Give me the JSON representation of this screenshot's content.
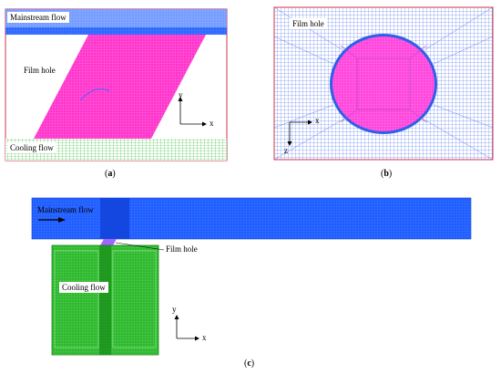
{
  "panel_a": {
    "labels": {
      "mainstream": "Mainstream flow",
      "film_hole": "Film hole",
      "cooling": "Cooling flow"
    },
    "axes": {
      "y": "y",
      "x": "x"
    },
    "caption": {
      "open": "(",
      "letter": "a",
      "close": ")"
    },
    "colors": {
      "mainstream": "#1a5cff",
      "film_hole": "#ff33cc",
      "cooling": "#33cc33",
      "frame": "#d0344a"
    }
  },
  "panel_b": {
    "labels": {
      "film_hole": "Film hole"
    },
    "axes": {
      "x": "x",
      "z": "z"
    },
    "caption": {
      "open": "(",
      "letter": "b",
      "close": ")"
    },
    "colors": {
      "mesh": "#2f5fe8",
      "hole": "#ff44dd",
      "frame": "#d0344a"
    }
  },
  "panel_c": {
    "labels": {
      "mainstream": "Mainstream flow",
      "film_hole": "Film hole",
      "cooling": "Cooling flow"
    },
    "axes": {
      "y": "y",
      "x": "x"
    },
    "caption": {
      "open": "(",
      "letter": "c",
      "close": ")"
    },
    "colors": {
      "mainstream": "#1a5cff",
      "cooling": "#2db82d",
      "hole": "#a066ff"
    }
  }
}
